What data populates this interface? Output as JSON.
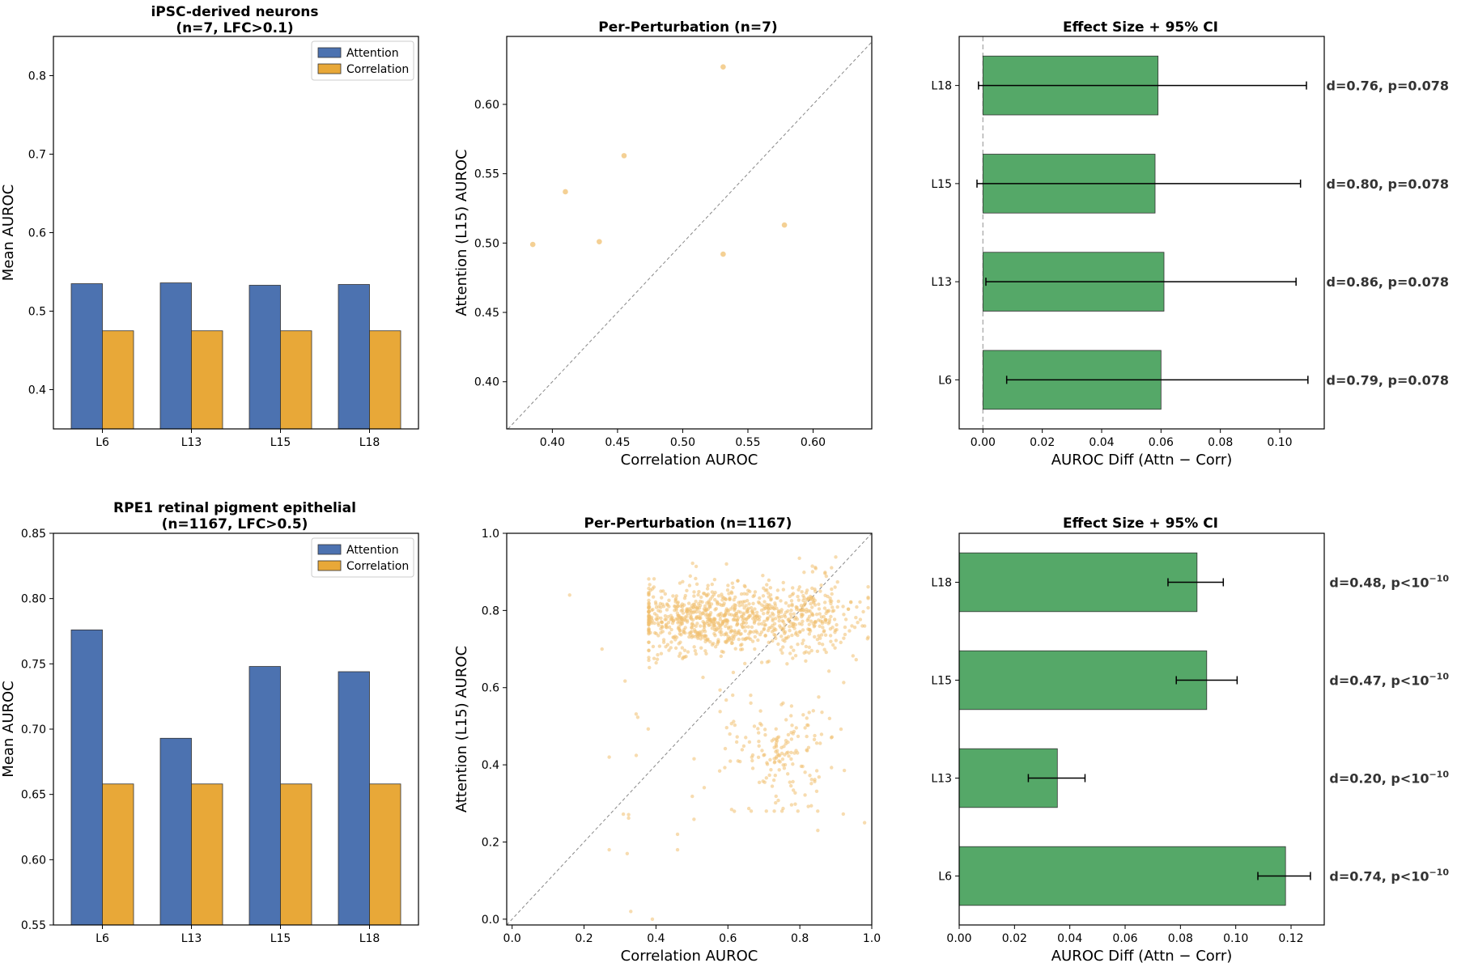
{
  "colors": {
    "attention": "#4c72b0",
    "correlation": "#e8a838",
    "effect": "#55a868",
    "scatter": "#f0c070"
  },
  "panels": [
    {
      "title_lines": [
        "Per-Perturbation (n=7)"
      ]
    },
    {
      "title_lines": [
        "Effect Size + 95% CI"
      ]
    },
    {
      "title_lines": [
        "Per-Perturbation (n=1167)"
      ]
    },
    {
      "title_lines": [
        "Effect Size + 95% CI"
      ]
    }
  ],
  "chart_data": [
    {
      "type": "bar",
      "title_lines": [
        "iPSC-derived neurons",
        "(n=7, LFC>0.1)"
      ],
      "categories": [
        "L6",
        "L13",
        "L15",
        "L18"
      ],
      "series": [
        {
          "name": "Attention",
          "values": [
            0.535,
            0.536,
            0.533,
            0.534
          ]
        },
        {
          "name": "Correlation",
          "values": [
            0.475,
            0.475,
            0.475,
            0.475
          ]
        }
      ],
      "xlabel": "",
      "ylabel": "Mean AUROC",
      "ylim": [
        0.35,
        0.85
      ],
      "yticks": [
        0.4,
        0.5,
        0.6,
        0.7,
        0.8
      ],
      "legend": "top-right"
    },
    {
      "type": "scatter",
      "title": "Per-Perturbation (n=7)",
      "xlabel": "Correlation AUROC",
      "ylabel": "Attention (L15) AUROC",
      "xlim": [
        0.365,
        0.645
      ],
      "ylim": [
        0.366,
        0.649
      ],
      "xticks": [
        0.4,
        0.45,
        0.5,
        0.55,
        0.6
      ],
      "yticks": [
        0.4,
        0.45,
        0.5,
        0.55,
        0.6
      ],
      "x": [
        0.385,
        0.41,
        0.436,
        0.455,
        0.531,
        0.531,
        0.578
      ],
      "y": [
        0.499,
        0.537,
        0.501,
        0.563,
        0.627,
        0.492,
        0.513
      ],
      "diagonal": true
    },
    {
      "type": "bar",
      "orientation": "horizontal",
      "title": "Effect Size + 95% CI",
      "categories": [
        "L6",
        "L13",
        "L15",
        "L18"
      ],
      "values": [
        0.06,
        0.061,
        0.058,
        0.059
      ],
      "ci_low": [
        0.008,
        0.001,
        -0.002,
        -0.0015
      ],
      "ci_high": [
        0.1095,
        0.1055,
        0.107,
        0.109
      ],
      "annotations": [
        "d=0.79, p=0.078",
        "d=0.86, p=0.078",
        "d=0.80, p=0.078",
        "d=0.76, p=0.078"
      ],
      "xlabel": "AUROC Diff (Attn − Corr)",
      "xlim": [
        -0.008,
        0.115
      ],
      "xticks": [
        0.0,
        0.02,
        0.04,
        0.06,
        0.08,
        0.1
      ],
      "zero_line": true
    },
    {
      "type": "bar",
      "title_lines": [
        "RPE1 retinal pigment epithelial",
        "(n=1167, LFC>0.5)"
      ],
      "categories": [
        "L6",
        "L13",
        "L15",
        "L18"
      ],
      "series": [
        {
          "name": "Attention",
          "values": [
            0.776,
            0.693,
            0.748,
            0.744
          ]
        },
        {
          "name": "Correlation",
          "values": [
            0.658,
            0.658,
            0.658,
            0.658
          ]
        }
      ],
      "xlabel": "",
      "ylabel": "Mean AUROC",
      "ylim": [
        0.55,
        0.85
      ],
      "yticks": [
        0.55,
        0.6,
        0.65,
        0.7,
        0.75,
        0.8,
        0.85
      ],
      "legend": "top-right"
    },
    {
      "type": "scatter",
      "title": "Per-Perturbation (n=1167)",
      "xlabel": "Correlation AUROC",
      "ylabel": "Attention (L15) AUROC",
      "xlim": [
        -0.015,
        1.0
      ],
      "ylim": [
        -0.015,
        1.0
      ],
      "xticks": [
        0.0,
        0.2,
        0.4,
        0.6,
        0.8,
        1.0
      ],
      "yticks": [
        0.0,
        0.2,
        0.4,
        0.6,
        0.8,
        1.0
      ],
      "approx_point_count": 1167,
      "distribution": "main cluster Correlation 0.4-0.98, Attention 0.65-0.95; secondary cluster Correlation 0.6-0.85, Attention 0.3-0.55; sparse outliers down to Attention 0.0",
      "outliers": [
        [
          0.16,
          0.84
        ],
        [
          0.27,
          0.18
        ],
        [
          0.32,
          0.17
        ],
        [
          0.33,
          0.02
        ],
        [
          0.39,
          0.0
        ],
        [
          0.46,
          0.18
        ],
        [
          0.46,
          0.22
        ],
        [
          0.98,
          0.25
        ],
        [
          0.25,
          0.7
        ],
        [
          0.27,
          0.42
        ],
        [
          0.85,
          0.23
        ]
      ],
      "diagonal": true
    },
    {
      "type": "bar",
      "orientation": "horizontal",
      "title": "Effect Size + 95% CI",
      "categories": [
        "L6",
        "L13",
        "L15",
        "L18"
      ],
      "values": [
        0.118,
        0.0355,
        0.0895,
        0.086
      ],
      "ci_low": [
        0.108,
        0.025,
        0.0785,
        0.0755
      ],
      "ci_high": [
        0.127,
        0.0455,
        0.1005,
        0.0955
      ],
      "annotations": [
        "d=0.74, p<10",
        "d=0.20, p<10",
        "d=0.47, p<10",
        "d=0.48, p<10"
      ],
      "annotation_superscript": "−10",
      "xlabel": "AUROC Diff (Attn − Corr)",
      "xlim": [
        0,
        0.132
      ],
      "xticks": [
        0.0,
        0.02,
        0.04,
        0.06,
        0.08,
        0.1,
        0.12
      ]
    }
  ]
}
